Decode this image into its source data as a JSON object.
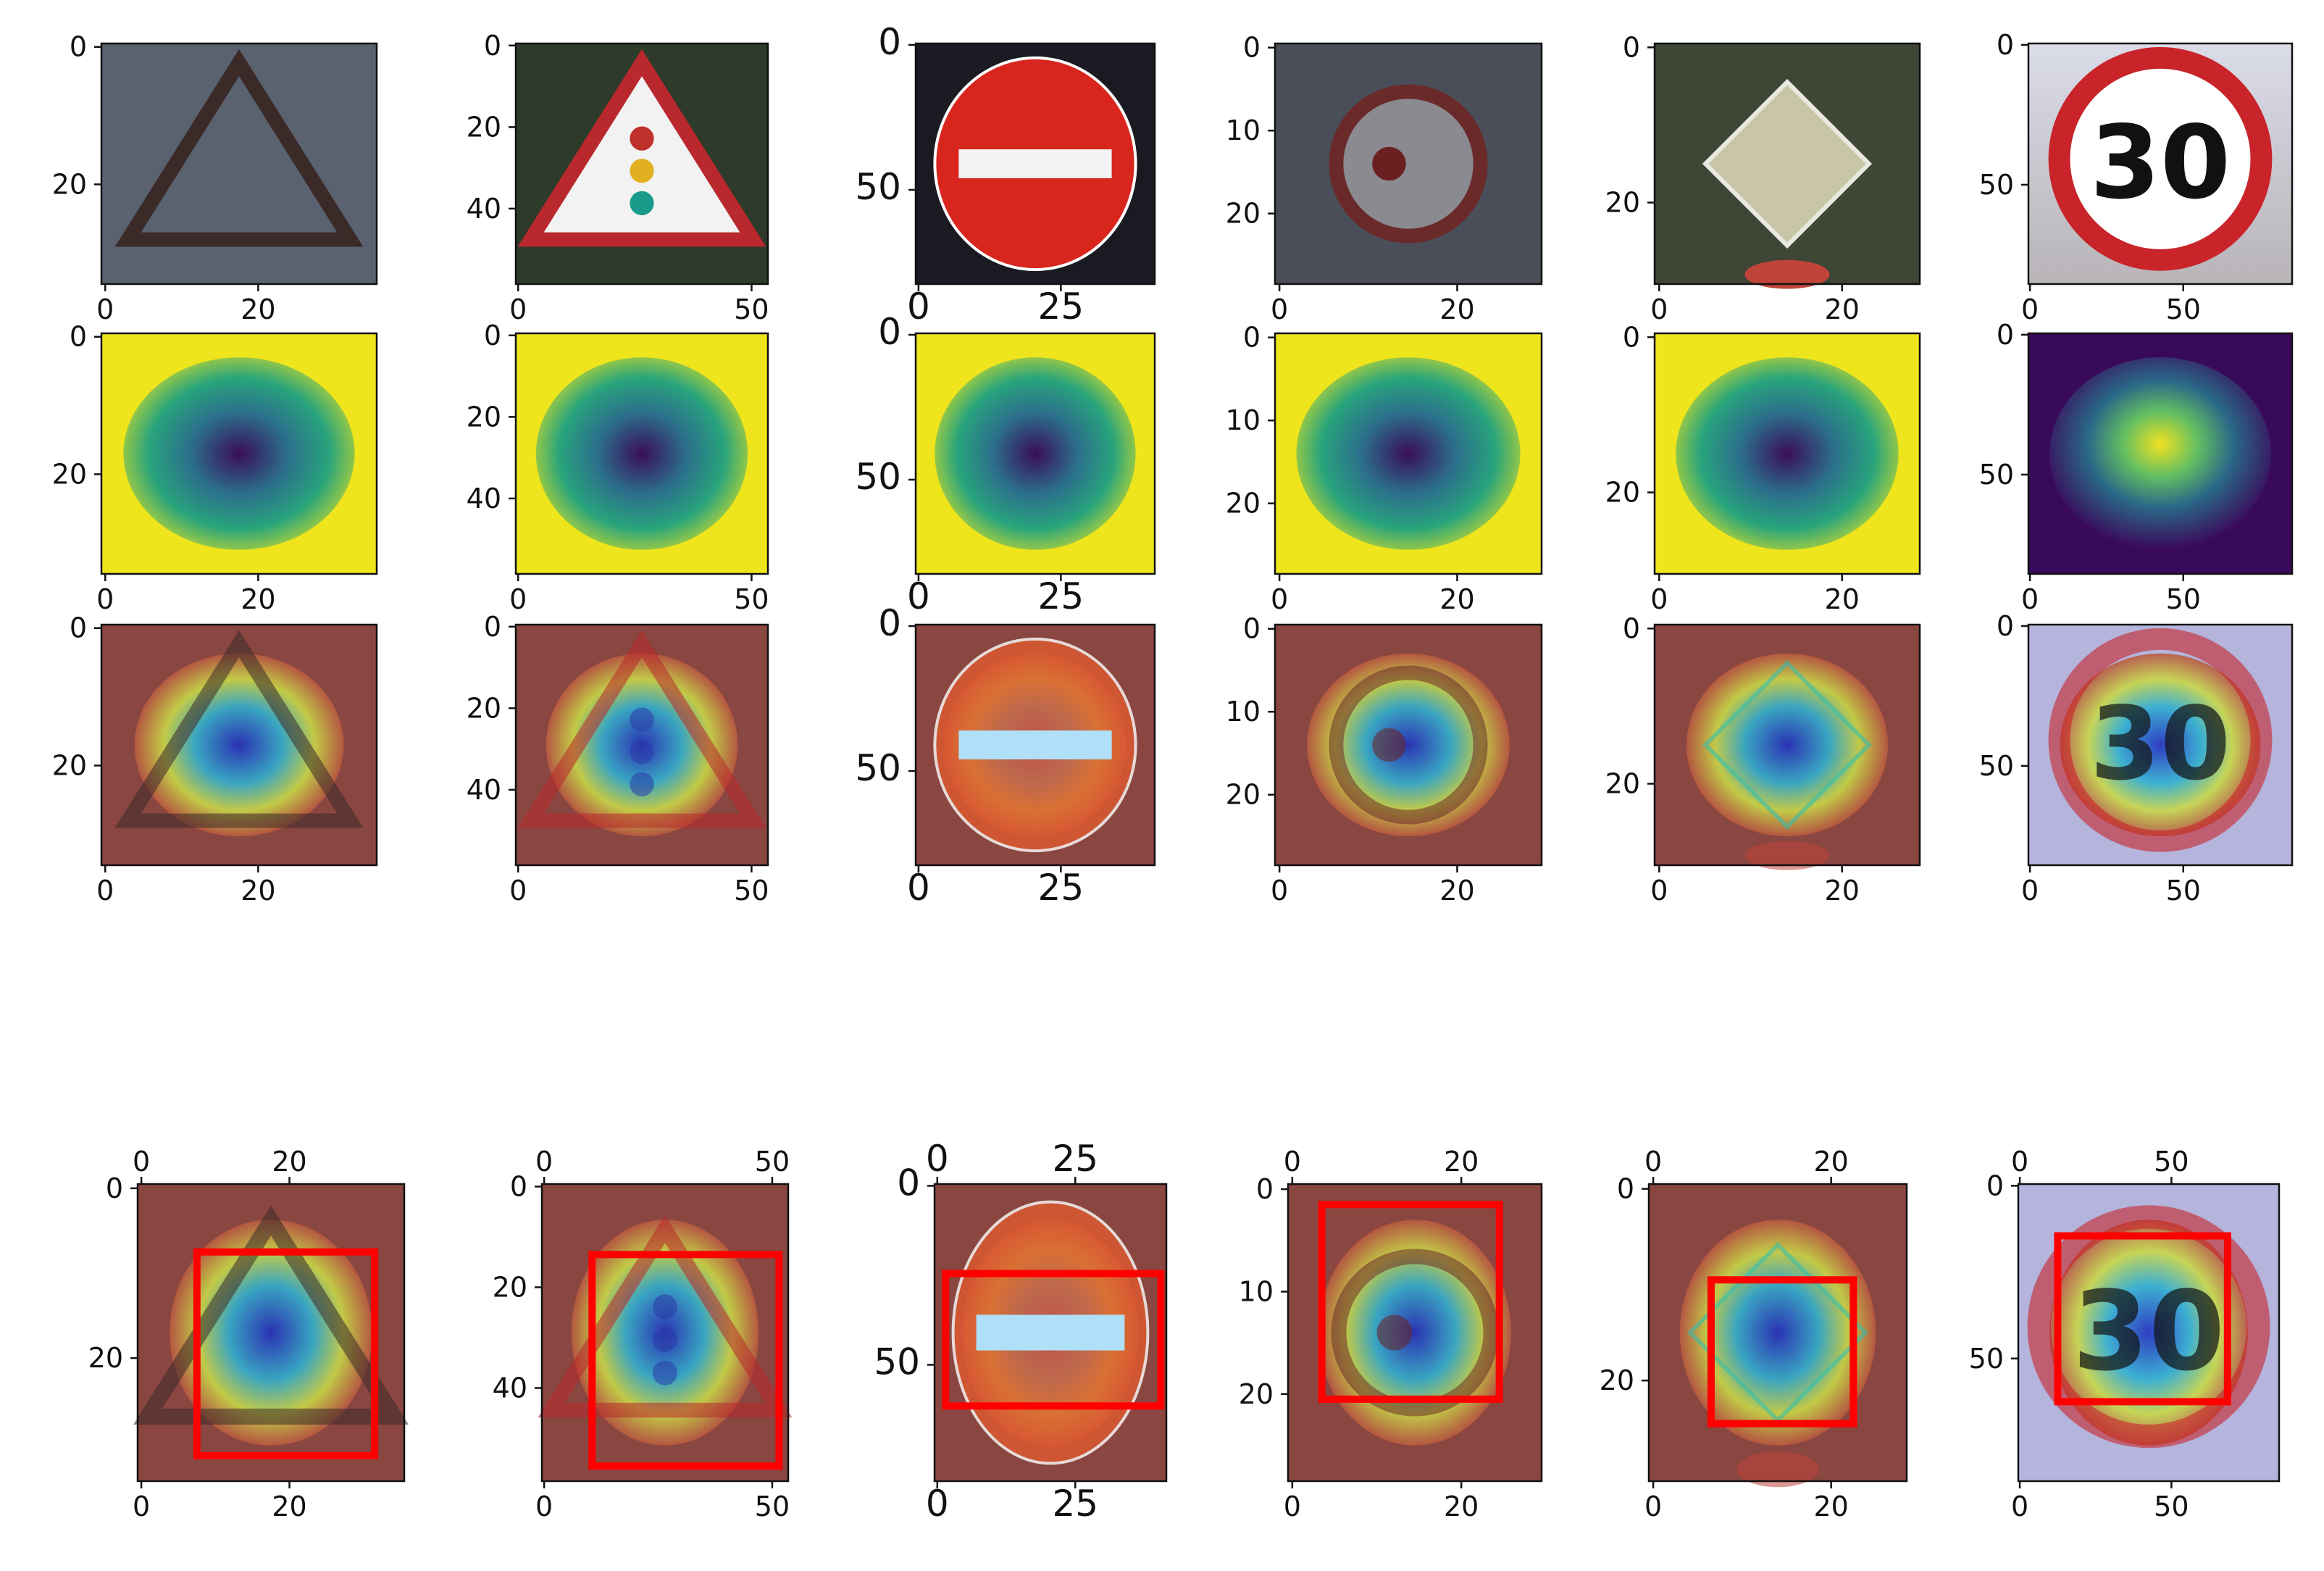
{
  "figure": {
    "rows": [
      {
        "id": "original",
        "kind": "photo"
      },
      {
        "id": "heatmap",
        "kind": "viridis"
      },
      {
        "id": "overlay",
        "kind": "jet-overlay"
      },
      {
        "id": "bbox",
        "kind": "jet-overlay-with-box",
        "x_ticks_on_top": true
      }
    ],
    "columns": [
      {
        "id": "warning-triangle-dark",
        "sign": "warning-triangle",
        "x_ticks": [
          "0",
          "20"
        ],
        "y_ticks": [
          "0",
          "20"
        ],
        "bbox_y_ticks": [
          "0",
          "20"
        ],
        "x_tick_vals": [
          0,
          20
        ],
        "y_tick_vals": [
          0,
          20
        ],
        "width": 36,
        "height": 35,
        "box": {
          "x0": 8,
          "y0": 8,
          "x1": 32,
          "y1": 32
        },
        "colors": {
          "bg": "#5a6270",
          "sign": "#3a2a28"
        }
      },
      {
        "id": "traffic-light-warning",
        "sign": "traffic-light-triangle",
        "x_ticks": [
          "0",
          "50"
        ],
        "y_ticks": [
          "0",
          "20",
          "40"
        ],
        "bbox_y_ticks": [
          "0",
          "20",
          "40"
        ],
        "x_tick_vals": [
          0,
          50
        ],
        "y_tick_vals": [
          0,
          20,
          40
        ],
        "width": 54,
        "height": 59,
        "box": {
          "x0": 11,
          "y0": 14,
          "x1": 52,
          "y1": 56
        },
        "colors": {
          "bg": "#2e3a2a",
          "sign": "#b8282c"
        }
      },
      {
        "id": "no-entry",
        "sign": "no-entry",
        "x_ticks": [
          "0",
          "25"
        ],
        "y_ticks": [
          "0",
          "50"
        ],
        "bbox_y_ticks": [
          "0",
          "50"
        ],
        "x_tick_vals": [
          0,
          25
        ],
        "y_tick_vals": [
          0,
          50
        ],
        "width": 42,
        "height": 83,
        "box": {
          "x0": 2,
          "y0": 25,
          "x1": 41,
          "y1": 62
        },
        "colors": {
          "bg": "#1a1a22",
          "sign": "#d8261e"
        }
      },
      {
        "id": "no-overtaking",
        "sign": "prohibition-ring",
        "x_ticks": [
          "0",
          "20"
        ],
        "y_ticks": [
          "0",
          "10",
          "20"
        ],
        "bbox_y_ticks": [
          "0",
          "10",
          "20"
        ],
        "x_tick_vals": [
          0,
          20
        ],
        "y_tick_vals": [
          0,
          10,
          20
        ],
        "width": 30,
        "height": 29,
        "box": {
          "x0": 4,
          "y0": 2,
          "x1": 25,
          "y1": 21
        },
        "colors": {
          "bg": "#4a4e58",
          "sign": "#6a2a2a"
        }
      },
      {
        "id": "priority-road",
        "sign": "priority-diamond",
        "x_ticks": [
          "0",
          "20"
        ],
        "y_ticks": [
          "0",
          "20"
        ],
        "bbox_y_ticks": [
          "0",
          "20"
        ],
        "x_tick_vals": [
          0,
          20
        ],
        "y_tick_vals": [
          0,
          20
        ],
        "width": 29,
        "height": 31,
        "box": {
          "x0": 7,
          "y0": 10,
          "x1": 23,
          "y1": 25
        },
        "colors": {
          "bg": "#3e4636",
          "sign": "#c9c6a8"
        }
      },
      {
        "id": "speed-limit-30",
        "sign": "speed-limit",
        "x_ticks": [
          "0",
          "50"
        ],
        "y_ticks": [
          "0",
          "50"
        ],
        "bbox_y_ticks": [
          "0",
          "50"
        ],
        "x_tick_vals": [
          0,
          50
        ],
        "y_tick_vals": [
          0,
          50
        ],
        "width": 86,
        "height": 86,
        "box": {
          "x0": 13,
          "y0": 15,
          "x1": 69,
          "y1": 63
        },
        "colors": {
          "bg": "#d0d0d8",
          "sign": "#c8242a"
        }
      }
    ],
    "speed_text": "30",
    "box_color": "#ff0000"
  }
}
